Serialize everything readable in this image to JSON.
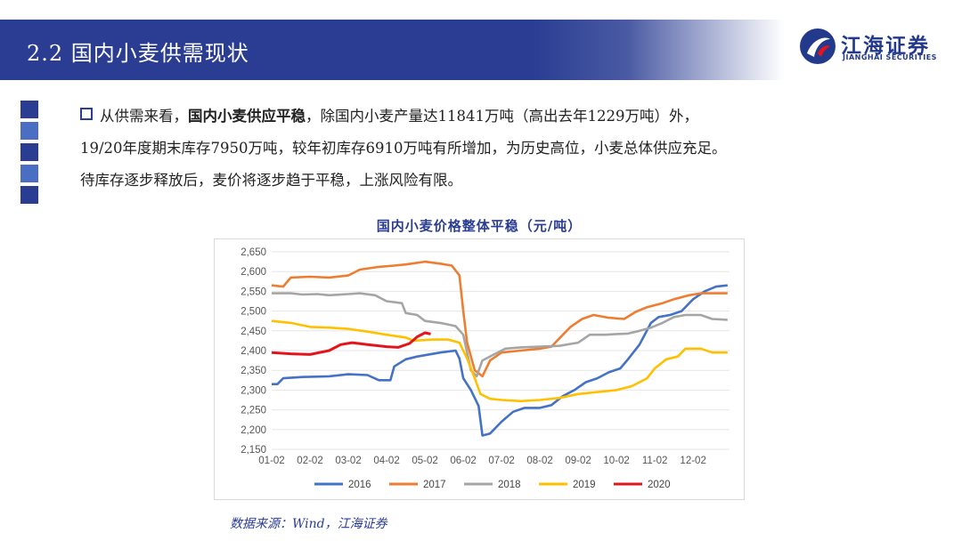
{
  "header": {
    "title": "2.2 国内小麦供需现状"
  },
  "logo": {
    "name_cn": "江海证券",
    "name_en": "JIANGHAI SECURITIES"
  },
  "side_squares": [
    "#2a3d93",
    "#4a6fc2",
    "#2a3d93",
    "#4a6fc2",
    "#2a3d93"
  ],
  "paragraph": {
    "line1_prefix": "从供需来看，",
    "line1_bold": "国内小麦供应平稳",
    "line1_suffix": "，除国内小麦产量达11841万吨（高出去年1229万吨）外，",
    "line2": "19/20年度期末库存7950万吨，较年初库存6910万吨有所增加，为历史高位，小麦总体供应充足。",
    "line3": "待库存逐步释放后，麦价将逐步趋于平稳，上涨风险有限。"
  },
  "chart_data": {
    "type": "line",
    "title": "国内小麦价格整体平稳（元/吨）",
    "x_ticks": [
      "01-02",
      "02-02",
      "03-02",
      "04-02",
      "05-02",
      "06-02",
      "07-02",
      "08-02",
      "09-02",
      "10-02",
      "11-02",
      "12-02"
    ],
    "ylim": [
      2150,
      2650
    ],
    "y_ticks": [
      "2,150",
      "2,200",
      "2,250",
      "2,300",
      "2,350",
      "2,400",
      "2,450",
      "2,500",
      "2,550",
      "2,600",
      "2,650"
    ],
    "legend_position": "bottom",
    "grid": true,
    "series": [
      {
        "name": "2016",
        "color": "#4472c4",
        "points": [
          [
            0,
            2315
          ],
          [
            0.15,
            2315
          ],
          [
            0.3,
            2330
          ],
          [
            0.8,
            2333
          ],
          [
            1.5,
            2335
          ],
          [
            2.0,
            2340
          ],
          [
            2.5,
            2338
          ],
          [
            2.8,
            2325
          ],
          [
            3.1,
            2325
          ],
          [
            3.2,
            2360
          ],
          [
            3.5,
            2378
          ],
          [
            3.8,
            2385
          ],
          [
            4.4,
            2395
          ],
          [
            4.8,
            2400
          ],
          [
            4.9,
            2380
          ],
          [
            5.0,
            2330
          ],
          [
            5.2,
            2300
          ],
          [
            5.4,
            2260
          ],
          [
            5.5,
            2185
          ],
          [
            5.7,
            2190
          ],
          [
            6.0,
            2220
          ],
          [
            6.3,
            2245
          ],
          [
            6.6,
            2255
          ],
          [
            7.0,
            2255
          ],
          [
            7.3,
            2262
          ],
          [
            7.6,
            2285
          ],
          [
            7.9,
            2300
          ],
          [
            8.2,
            2320
          ],
          [
            8.5,
            2330
          ],
          [
            8.8,
            2345
          ],
          [
            9.1,
            2355
          ],
          [
            9.3,
            2378
          ],
          [
            9.6,
            2415
          ],
          [
            9.9,
            2470
          ],
          [
            10.1,
            2485
          ],
          [
            10.4,
            2490
          ],
          [
            10.7,
            2500
          ],
          [
            11.0,
            2530
          ],
          [
            11.3,
            2550
          ],
          [
            11.6,
            2562
          ],
          [
            11.9,
            2565
          ]
        ]
      },
      {
        "name": "2017",
        "color": "#ed7d31",
        "points": [
          [
            0,
            2565
          ],
          [
            0.3,
            2562
          ],
          [
            0.5,
            2585
          ],
          [
            1.0,
            2587
          ],
          [
            1.5,
            2585
          ],
          [
            2.0,
            2590
          ],
          [
            2.3,
            2605
          ],
          [
            2.8,
            2612
          ],
          [
            3.2,
            2615
          ],
          [
            3.5,
            2618
          ],
          [
            4.0,
            2625
          ],
          [
            4.4,
            2620
          ],
          [
            4.7,
            2615
          ],
          [
            4.9,
            2590
          ],
          [
            5.0,
            2500
          ],
          [
            5.1,
            2420
          ],
          [
            5.3,
            2350
          ],
          [
            5.5,
            2335
          ],
          [
            5.7,
            2375
          ],
          [
            6.0,
            2395
          ],
          [
            6.5,
            2400
          ],
          [
            7.0,
            2405
          ],
          [
            7.3,
            2410
          ],
          [
            7.5,
            2430
          ],
          [
            7.8,
            2460
          ],
          [
            8.1,
            2480
          ],
          [
            8.4,
            2490
          ],
          [
            8.8,
            2483
          ],
          [
            9.2,
            2480
          ],
          [
            9.5,
            2498
          ],
          [
            9.8,
            2510
          ],
          [
            10.2,
            2520
          ],
          [
            10.5,
            2530
          ],
          [
            10.9,
            2540
          ],
          [
            11.2,
            2545
          ],
          [
            11.6,
            2545
          ],
          [
            11.9,
            2545
          ]
        ]
      },
      {
        "name": "2018",
        "color": "#a5a5a5",
        "points": [
          [
            0,
            2545
          ],
          [
            0.5,
            2545
          ],
          [
            0.8,
            2542
          ],
          [
            1.2,
            2543
          ],
          [
            1.5,
            2540
          ],
          [
            2.0,
            2543
          ],
          [
            2.3,
            2545
          ],
          [
            2.7,
            2540
          ],
          [
            3.0,
            2525
          ],
          [
            3.4,
            2520
          ],
          [
            3.5,
            2495
          ],
          [
            3.8,
            2490
          ],
          [
            4.0,
            2475
          ],
          [
            4.4,
            2470
          ],
          [
            4.8,
            2462
          ],
          [
            5.0,
            2440
          ],
          [
            5.2,
            2350
          ],
          [
            5.35,
            2335
          ],
          [
            5.5,
            2375
          ],
          [
            5.8,
            2390
          ],
          [
            6.1,
            2405
          ],
          [
            6.5,
            2408
          ],
          [
            7.0,
            2410
          ],
          [
            7.5,
            2412
          ],
          [
            8.0,
            2420
          ],
          [
            8.3,
            2440
          ],
          [
            8.7,
            2440
          ],
          [
            9.0,
            2442
          ],
          [
            9.3,
            2443
          ],
          [
            9.6,
            2450
          ],
          [
            9.9,
            2458
          ],
          [
            10.2,
            2470
          ],
          [
            10.5,
            2485
          ],
          [
            10.8,
            2490
          ],
          [
            11.2,
            2490
          ],
          [
            11.5,
            2480
          ],
          [
            11.9,
            2478
          ]
        ]
      },
      {
        "name": "2019",
        "color": "#ffc000",
        "points": [
          [
            0,
            2475
          ],
          [
            0.5,
            2470
          ],
          [
            1.0,
            2460
          ],
          [
            1.5,
            2458
          ],
          [
            2.0,
            2455
          ],
          [
            2.5,
            2448
          ],
          [
            3.0,
            2440
          ],
          [
            3.5,
            2433
          ],
          [
            3.7,
            2425
          ],
          [
            4.2,
            2428
          ],
          [
            4.6,
            2428
          ],
          [
            4.9,
            2420
          ],
          [
            5.1,
            2380
          ],
          [
            5.3,
            2330
          ],
          [
            5.45,
            2290
          ],
          [
            5.7,
            2278
          ],
          [
            6.0,
            2275
          ],
          [
            6.5,
            2272
          ],
          [
            7.0,
            2275
          ],
          [
            7.5,
            2280
          ],
          [
            8.0,
            2290
          ],
          [
            8.5,
            2295
          ],
          [
            9.0,
            2300
          ],
          [
            9.4,
            2310
          ],
          [
            9.8,
            2330
          ],
          [
            10.0,
            2355
          ],
          [
            10.3,
            2378
          ],
          [
            10.6,
            2385
          ],
          [
            10.8,
            2405
          ],
          [
            11.2,
            2405
          ],
          [
            11.5,
            2395
          ],
          [
            11.9,
            2395
          ]
        ]
      },
      {
        "name": "2020",
        "color": "#e3141b",
        "points": [
          [
            0,
            2395
          ],
          [
            0.5,
            2392
          ],
          [
            1.0,
            2390
          ],
          [
            1.5,
            2400
          ],
          [
            1.8,
            2415
          ],
          [
            2.1,
            2420
          ],
          [
            2.5,
            2415
          ],
          [
            3.0,
            2410
          ],
          [
            3.3,
            2408
          ],
          [
            3.6,
            2418
          ],
          [
            3.8,
            2435
          ],
          [
            4.0,
            2445
          ],
          [
            4.15,
            2442
          ]
        ]
      }
    ]
  },
  "source": "数据来源：Wind，江海证券"
}
